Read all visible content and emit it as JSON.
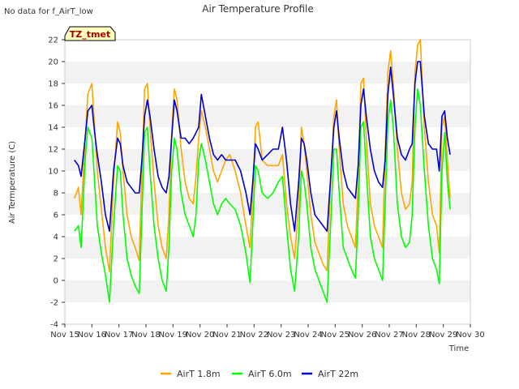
{
  "chart_data": {
    "type": "line",
    "title": "Air Temperature Profile",
    "subtitle_note": "No data for f_AirT_low",
    "site_badge": "TZ_tmet",
    "xlabel": "Time",
    "ylabel": "Air Termperature (C)",
    "xlim": [
      15,
      30
    ],
    "ylim": [
      -4,
      22
    ],
    "x_ticks": [
      15,
      16,
      17,
      18,
      19,
      20,
      21,
      22,
      23,
      24,
      25,
      26,
      27,
      28,
      29,
      30
    ],
    "x_tick_labels": [
      "Nov 15",
      "Nov 16",
      "Nov 17",
      "Nov 18",
      "Nov 19",
      "Nov 20",
      "Nov 21",
      "Nov 22",
      "Nov 23",
      "Nov 24",
      "Nov 25",
      "Nov 26",
      "Nov 27",
      "Nov 28",
      "Nov 29",
      "Nov 30"
    ],
    "y_ticks": [
      -4,
      -2,
      0,
      2,
      4,
      6,
      8,
      10,
      12,
      14,
      16,
      18,
      20,
      22
    ],
    "grid": "horizontal bands",
    "legend_position": "bottom",
    "series": [
      {
        "name": "AirT 1.8m",
        "color": "#ffa500",
        "x": [
          15.35,
          15.5,
          15.6,
          15.75,
          15.85,
          16.0,
          16.1,
          16.2,
          16.35,
          16.5,
          16.65,
          16.8,
          16.95,
          17.05,
          17.15,
          17.3,
          17.45,
          17.6,
          17.75,
          17.85,
          17.95,
          18.05,
          18.15,
          18.3,
          18.45,
          18.6,
          18.75,
          18.85,
          18.95,
          19.05,
          19.15,
          19.3,
          19.45,
          19.6,
          19.75,
          19.85,
          19.95,
          20.05,
          20.2,
          20.35,
          20.5,
          20.65,
          20.8,
          20.95,
          21.1,
          21.3,
          21.5,
          21.7,
          21.85,
          21.95,
          22.05,
          22.15,
          22.3,
          22.5,
          22.7,
          22.9,
          23.05,
          23.2,
          23.35,
          23.5,
          23.65,
          23.75,
          23.85,
          23.95,
          24.1,
          24.25,
          24.4,
          24.55,
          24.7,
          24.85,
          24.95,
          25.05,
          25.15,
          25.3,
          25.45,
          25.6,
          25.75,
          25.85,
          25.95,
          26.05,
          26.15,
          26.3,
          26.45,
          26.6,
          26.75,
          26.85,
          26.95,
          27.05,
          27.15,
          27.3,
          27.45,
          27.6,
          27.75,
          27.85,
          27.95,
          28.05,
          28.15,
          28.3,
          28.45,
          28.6,
          28.75,
          28.85,
          28.95,
          29.05,
          29.15,
          29.25
        ],
        "y": [
          7.5,
          8.5,
          6.0,
          13.0,
          17.0,
          18.0,
          14.0,
          10.0,
          6.5,
          3.0,
          0.8,
          9.0,
          14.5,
          13.5,
          10.0,
          6.0,
          4.0,
          3.0,
          1.8,
          10.0,
          17.5,
          18.0,
          14.0,
          9.0,
          5.0,
          3.0,
          2.0,
          6.0,
          13.5,
          17.5,
          16.5,
          12.0,
          9.0,
          7.5,
          7.0,
          9.5,
          13.0,
          15.5,
          14.0,
          12.0,
          10.0,
          9.0,
          10.0,
          11.0,
          11.5,
          10.0,
          8.0,
          5.0,
          3.0,
          8.0,
          14.0,
          14.5,
          11.0,
          10.5,
          10.5,
          10.5,
          11.5,
          7.0,
          4.0,
          2.0,
          7.0,
          14.0,
          12.5,
          10.0,
          6.0,
          3.5,
          2.5,
          1.5,
          0.9,
          10.0,
          15.0,
          16.5,
          12.0,
          7.0,
          5.0,
          4.0,
          3.0,
          9.0,
          18.0,
          18.5,
          13.0,
          7.0,
          5.0,
          4.0,
          3.0,
          12.0,
          19.0,
          21.0,
          18.0,
          12.0,
          8.0,
          6.5,
          7.0,
          9.0,
          19.0,
          21.5,
          22.0,
          14.0,
          9.0,
          6.0,
          5.0,
          2.5,
          14.0,
          15.0,
          11.0,
          7.5
        ]
      },
      {
        "name": "AirT 6.0m",
        "color": "#00ff00",
        "x": [
          15.35,
          15.5,
          15.6,
          15.75,
          15.85,
          16.0,
          16.1,
          16.2,
          16.35,
          16.5,
          16.65,
          16.8,
          16.95,
          17.05,
          17.15,
          17.3,
          17.45,
          17.6,
          17.75,
          17.85,
          17.95,
          18.05,
          18.15,
          18.3,
          18.45,
          18.6,
          18.75,
          18.85,
          18.95,
          19.05,
          19.15,
          19.3,
          19.45,
          19.6,
          19.75,
          19.85,
          19.95,
          20.05,
          20.2,
          20.35,
          20.5,
          20.65,
          20.8,
          20.95,
          21.1,
          21.3,
          21.5,
          21.7,
          21.85,
          21.95,
          22.05,
          22.15,
          22.3,
          22.5,
          22.7,
          22.9,
          23.05,
          23.2,
          23.35,
          23.5,
          23.65,
          23.75,
          23.85,
          23.95,
          24.1,
          24.25,
          24.4,
          24.55,
          24.7,
          24.85,
          24.95,
          25.05,
          25.15,
          25.3,
          25.45,
          25.6,
          25.75,
          25.85,
          25.95,
          26.05,
          26.15,
          26.3,
          26.45,
          26.6,
          26.75,
          26.85,
          26.95,
          27.05,
          27.15,
          27.3,
          27.45,
          27.6,
          27.75,
          27.85,
          27.95,
          28.05,
          28.15,
          28.3,
          28.45,
          28.6,
          28.75,
          28.85,
          28.95,
          29.05,
          29.15,
          29.25
        ],
        "y": [
          4.5,
          5.0,
          3.0,
          11.0,
          14.0,
          13.0,
          9.0,
          5.0,
          2.5,
          0.5,
          -2.0,
          5.0,
          10.5,
          10.0,
          6.0,
          2.0,
          0.5,
          -0.5,
          -1.2,
          6.0,
          13.5,
          14.0,
          10.0,
          5.0,
          2.0,
          0.0,
          -1.0,
          3.0,
          10.0,
          13.0,
          12.0,
          8.0,
          6.0,
          5.0,
          4.0,
          6.0,
          11.0,
          12.5,
          11.0,
          9.0,
          7.0,
          6.0,
          7.0,
          7.5,
          7.0,
          6.5,
          5.0,
          2.5,
          -0.2,
          5.0,
          10.5,
          10.0,
          8.0,
          7.5,
          8.0,
          9.0,
          9.5,
          5.0,
          1.0,
          -1.0,
          4.0,
          10.0,
          9.0,
          7.0,
          3.0,
          1.0,
          0.0,
          -1.0,
          -2.0,
          6.0,
          12.0,
          12.0,
          8.0,
          3.0,
          2.0,
          1.0,
          0.2,
          6.0,
          14.0,
          14.5,
          10.0,
          4.0,
          2.0,
          1.0,
          0.0,
          7.0,
          14.5,
          16.5,
          14.0,
          7.0,
          4.0,
          3.0,
          3.5,
          6.0,
          14.0,
          17.5,
          16.0,
          10.0,
          5.0,
          2.0,
          1.0,
          -0.3,
          10.0,
          13.5,
          9.0,
          6.5
        ]
      },
      {
        "name": "AirT 22m",
        "color": "#0000cd",
        "x": [
          15.35,
          15.5,
          15.6,
          15.75,
          15.85,
          16.0,
          16.1,
          16.2,
          16.35,
          16.5,
          16.65,
          16.8,
          16.95,
          17.05,
          17.15,
          17.3,
          17.45,
          17.6,
          17.75,
          17.85,
          17.95,
          18.05,
          18.15,
          18.3,
          18.45,
          18.6,
          18.75,
          18.85,
          18.95,
          19.05,
          19.15,
          19.3,
          19.45,
          19.6,
          19.75,
          19.85,
          19.95,
          20.05,
          20.2,
          20.35,
          20.5,
          20.65,
          20.8,
          20.95,
          21.1,
          21.3,
          21.5,
          21.7,
          21.85,
          21.95,
          22.05,
          22.15,
          22.3,
          22.5,
          22.7,
          22.9,
          23.05,
          23.2,
          23.35,
          23.5,
          23.65,
          23.75,
          23.85,
          23.95,
          24.1,
          24.25,
          24.4,
          24.55,
          24.7,
          24.85,
          24.95,
          25.05,
          25.15,
          25.3,
          25.45,
          25.6,
          25.75,
          25.85,
          25.95,
          26.05,
          26.15,
          26.3,
          26.45,
          26.6,
          26.75,
          26.85,
          26.95,
          27.05,
          27.15,
          27.3,
          27.45,
          27.6,
          27.75,
          27.85,
          27.95,
          28.05,
          28.15,
          28.3,
          28.45,
          28.6,
          28.75,
          28.85,
          28.95,
          29.05,
          29.15,
          29.25
        ],
        "y": [
          11.0,
          10.5,
          9.5,
          13.0,
          15.5,
          16.0,
          13.5,
          11.5,
          9.0,
          6.0,
          4.5,
          10.0,
          13.0,
          12.5,
          10.5,
          9.0,
          8.5,
          8.0,
          8.0,
          11.0,
          15.0,
          16.5,
          15.0,
          12.0,
          9.5,
          8.5,
          8.0,
          9.5,
          13.0,
          16.5,
          15.5,
          13.0,
          13.0,
          12.5,
          13.0,
          13.5,
          14.0,
          17.0,
          15.0,
          13.0,
          11.5,
          11.0,
          11.5,
          11.0,
          11.0,
          11.0,
          10.0,
          8.0,
          6.0,
          9.0,
          12.5,
          12.0,
          11.0,
          11.5,
          12.0,
          12.0,
          14.0,
          11.0,
          7.0,
          4.5,
          9.0,
          13.0,
          12.5,
          11.0,
          8.0,
          6.0,
          5.5,
          5.0,
          4.5,
          10.0,
          14.0,
          15.5,
          13.0,
          10.0,
          8.5,
          8.0,
          7.5,
          10.5,
          16.0,
          17.5,
          15.0,
          12.0,
          10.0,
          9.0,
          8.5,
          11.0,
          17.0,
          19.5,
          17.0,
          13.0,
          11.5,
          11.0,
          12.0,
          12.5,
          18.0,
          20.0,
          20.0,
          15.0,
          12.5,
          12.0,
          12.0,
          10.0,
          15.0,
          15.5,
          13.0,
          11.5
        ]
      }
    ]
  }
}
